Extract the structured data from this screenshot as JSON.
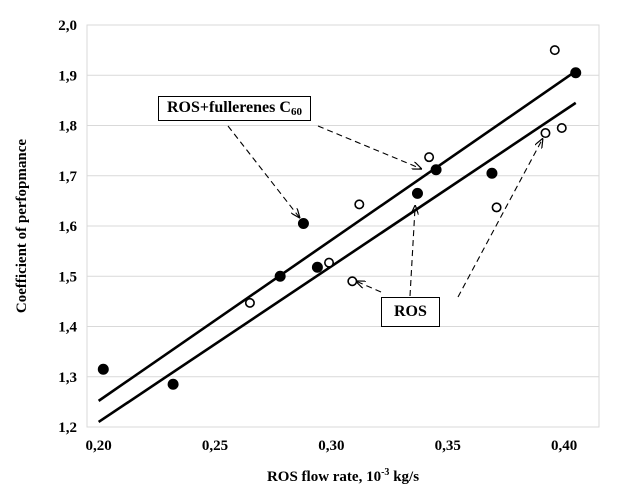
{
  "chart_data": {
    "type": "scatter",
    "title": "",
    "xlabel": "ROS flow rate, 10",
    "xlabel_sup": "-3",
    "xlabel_tail": " kg/s",
    "ylabel": "Coefficient  of  perfopmance",
    "xlim": [
      0.195,
      0.415
    ],
    "ylim": [
      1.2,
      2.0
    ],
    "x_ticks": [
      "0,20",
      "0,25",
      "0,30",
      "0,35",
      "0,40"
    ],
    "x_tick_values": [
      0.2,
      0.25,
      0.3,
      0.35,
      0.4
    ],
    "y_ticks": [
      "1,2",
      "1,3",
      "1,4",
      "1,5",
      "1,6",
      "1,7",
      "1,8",
      "1,9",
      "2,0"
    ],
    "y_tick_values": [
      1.2,
      1.3,
      1.4,
      1.5,
      1.6,
      1.7,
      1.8,
      1.9,
      2.0
    ],
    "grid": true,
    "series": [
      {
        "name": "ROS+fullerenes C60",
        "marker": "filled",
        "points": [
          [
            0.202,
            1.315
          ],
          [
            0.232,
            1.285
          ],
          [
            0.278,
            1.5
          ],
          [
            0.288,
            1.605
          ],
          [
            0.294,
            1.518
          ],
          [
            0.337,
            1.665
          ],
          [
            0.345,
            1.712
          ],
          [
            0.369,
            1.705
          ],
          [
            0.405,
            1.905
          ]
        ],
        "trendline": [
          [
            0.2,
            1.252
          ],
          [
            0.405,
            1.908
          ]
        ]
      },
      {
        "name": "ROS",
        "marker": "open",
        "points": [
          [
            0.265,
            1.447
          ],
          [
            0.299,
            1.527
          ],
          [
            0.309,
            1.49
          ],
          [
            0.312,
            1.643
          ],
          [
            0.342,
            1.737
          ],
          [
            0.371,
            1.637
          ],
          [
            0.392,
            1.785
          ],
          [
            0.396,
            1.95
          ],
          [
            0.399,
            1.795
          ]
        ],
        "trendline": [
          [
            0.2,
            1.21
          ],
          [
            0.405,
            1.845
          ]
        ]
      }
    ],
    "annotations": {
      "fullerenes_label": "ROS+fullerenes C",
      "fullerenes_sub": "60",
      "ros_label": "ROS"
    }
  }
}
